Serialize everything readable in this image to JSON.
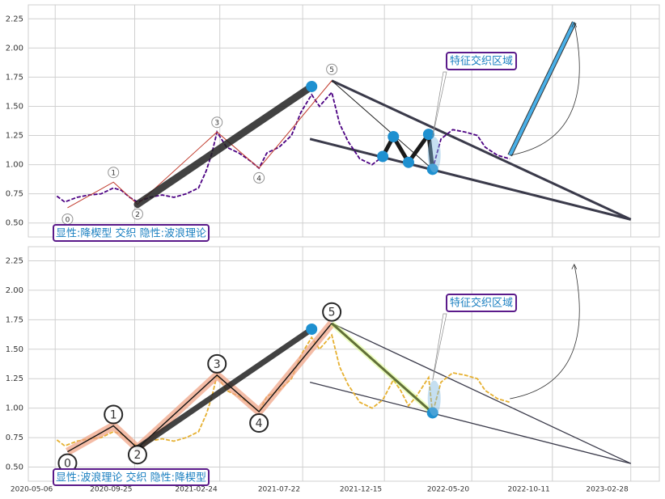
{
  "chart_data": [
    {
      "type": "line",
      "color": "#4b0082",
      "dashed": true,
      "grid": true,
      "ylim": [
        0.38,
        2.37
      ],
      "yticks": [
        {
          "value": 0.5,
          "label": "0.50"
        },
        {
          "value": 0.75,
          "label": "0.75"
        },
        {
          "value": 1.0,
          "label": "1.00"
        },
        {
          "value": 1.25,
          "label": "1.25"
        },
        {
          "value": 1.5,
          "label": "1.50"
        },
        {
          "value": 1.75,
          "label": "1.75"
        },
        {
          "value": 2.0,
          "label": "2.00"
        },
        {
          "value": 2.25,
          "label": "2.25"
        }
      ],
      "x": [
        "2020-05-09",
        "2020-05-23",
        "2020-06-14",
        "2020-07-06",
        "2020-07-27",
        "2020-08-18",
        "2020-09-01",
        "2020-09-16",
        "2020-09-30",
        "2020-10-22",
        "2020-11-13",
        "2020-12-04",
        "2020-12-26",
        "2021-01-17",
        "2021-01-31",
        "2021-02-10",
        "2021-02-19",
        "2021-03-08",
        "2021-03-30",
        "2021-04-20",
        "2021-05-05",
        "2021-05-19",
        "2021-06-10",
        "2021-07-02",
        "2021-07-19",
        "2021-08-07",
        "2021-08-21",
        "2021-09-12",
        "2021-09-26",
        "2021-10-11",
        "2021-11-01",
        "2021-11-23",
        "2021-12-12",
        "2021-12-31",
        "2022-01-13",
        "2022-01-27",
        "2022-02-10",
        "2022-03-04",
        "2022-03-11",
        "2022-03-26",
        "2022-04-16",
        "2022-05-08",
        "2022-05-30",
        "2022-06-13",
        "2022-07-05",
        "2022-07-27"
      ],
      "values": [
        0.73,
        0.68,
        0.72,
        0.74,
        0.75,
        0.8,
        0.78,
        0.72,
        0.68,
        0.72,
        0.74,
        0.72,
        0.75,
        0.8,
        0.95,
        1.1,
        1.28,
        1.15,
        1.1,
        1.03,
        0.97,
        1.1,
        1.15,
        1.25,
        1.45,
        1.6,
        1.5,
        1.62,
        1.35,
        1.2,
        1.05,
        1.0,
        1.07,
        1.24,
        1.15,
        1.02,
        1.1,
        1.26,
        0.96,
        1.22,
        1.3,
        1.28,
        1.25,
        1.15,
        1.08,
        1.05
      ],
      "waves": {
        "x": [
          "2020-05-28",
          "2020-08-18",
          "2020-09-30",
          "2021-02-19",
          "2021-05-05",
          "2021-09-12"
        ],
        "values": [
          0.63,
          0.85,
          0.66,
          1.28,
          0.97,
          1.72
        ],
        "labels": [
          "0",
          "1",
          "2",
          "3",
          "4",
          "5"
        ]
      },
      "pivots": {
        "x": [
          "2021-08-07",
          "2021-12-12",
          "2021-12-31",
          "2022-01-27",
          "2022-03-04",
          "2022-03-11"
        ],
        "values": [
          1.67,
          1.07,
          1.24,
          1.02,
          1.26,
          0.96
        ]
      },
      "trendlines": [
        {
          "x": [
            "2021-09-12",
            "2023-02-28"
          ],
          "values": [
            1.72,
            0.53
          ]
        },
        {
          "x": [
            "2021-08-04",
            "2023-02-28"
          ],
          "values": [
            1.22,
            0.53
          ]
        }
      ],
      "arrow": {
        "x": [
          "2022-07-27",
          "2022-11-19"
        ],
        "values": [
          1.08,
          2.22
        ]
      },
      "annotation": "显性:降楔型 交织 隐性:波浪理论",
      "zone_label": "特征交织区域"
    },
    {
      "type": "line",
      "color": "#e6b030",
      "dashed": true,
      "grid": true,
      "ylim": [
        0.38,
        2.37
      ],
      "yticks": [
        {
          "value": 0.5,
          "label": "0.50"
        },
        {
          "value": 0.75,
          "label": "0.75"
        },
        {
          "value": 1.0,
          "label": "1.00"
        },
        {
          "value": 1.25,
          "label": "1.25"
        },
        {
          "value": 1.5,
          "label": "1.50"
        },
        {
          "value": 1.75,
          "label": "1.75"
        },
        {
          "value": 2.0,
          "label": "2.00"
        },
        {
          "value": 2.25,
          "label": "2.25"
        }
      ],
      "xlim": [
        "2020-03-19",
        "2023-04-20"
      ],
      "xticks": [
        "2020-05-06",
        "2020-09-25",
        "2021-02-24",
        "2021-07-22",
        "2021-12-15",
        "2022-05-20",
        "2022-10-11",
        "2023-02-28"
      ],
      "x": [
        "2020-05-09",
        "2020-05-23",
        "2020-06-14",
        "2020-07-06",
        "2020-07-27",
        "2020-08-18",
        "2020-09-01",
        "2020-09-16",
        "2020-09-30",
        "2020-10-22",
        "2020-11-13",
        "2020-12-04",
        "2020-12-26",
        "2021-01-17",
        "2021-01-31",
        "2021-02-10",
        "2021-02-19",
        "2021-03-08",
        "2021-03-30",
        "2021-04-20",
        "2021-05-05",
        "2021-05-19",
        "2021-06-10",
        "2021-07-02",
        "2021-07-19",
        "2021-08-07",
        "2021-08-21",
        "2021-09-12",
        "2021-09-26",
        "2021-10-11",
        "2021-11-01",
        "2021-11-23",
        "2021-12-12",
        "2021-12-31",
        "2022-01-13",
        "2022-01-27",
        "2022-02-10",
        "2022-03-04",
        "2022-03-11",
        "2022-03-26",
        "2022-04-16",
        "2022-05-08",
        "2022-05-30",
        "2022-06-13",
        "2022-07-05",
        "2022-07-27"
      ],
      "values": [
        0.73,
        0.68,
        0.72,
        0.74,
        0.75,
        0.8,
        0.78,
        0.72,
        0.68,
        0.72,
        0.74,
        0.72,
        0.75,
        0.8,
        0.95,
        1.1,
        1.28,
        1.15,
        1.1,
        1.03,
        0.97,
        1.1,
        1.15,
        1.25,
        1.45,
        1.6,
        1.5,
        1.62,
        1.35,
        1.2,
        1.05,
        1.0,
        1.07,
        1.24,
        1.15,
        1.02,
        1.1,
        1.26,
        0.96,
        1.22,
        1.3,
        1.28,
        1.25,
        1.15,
        1.08,
        1.05
      ],
      "waves": {
        "x": [
          "2020-05-28",
          "2020-08-18",
          "2020-09-30",
          "2021-02-19",
          "2021-05-05",
          "2021-09-12"
        ],
        "values": [
          0.63,
          0.85,
          0.66,
          1.28,
          0.97,
          1.72
        ],
        "labels": [
          "0",
          "1",
          "2",
          "3",
          "4",
          "5"
        ]
      },
      "pivots": {
        "x": [
          "2021-08-07",
          "2022-03-11"
        ],
        "values": [
          1.67,
          0.96
        ]
      },
      "trendlines": [
        {
          "x": [
            "2021-09-12",
            "2023-02-28"
          ],
          "values": [
            1.72,
            0.53
          ]
        },
        {
          "x": [
            "2021-08-04",
            "2023-02-28"
          ],
          "values": [
            1.22,
            0.53
          ]
        }
      ],
      "arrow": {
        "x": [
          "2022-07-27",
          "2022-11-19"
        ],
        "values": [
          1.08,
          2.22
        ]
      },
      "annotation": "显性:波浪理论 交织 隐性:降楔型",
      "zone_label": "特征交织区域"
    }
  ]
}
